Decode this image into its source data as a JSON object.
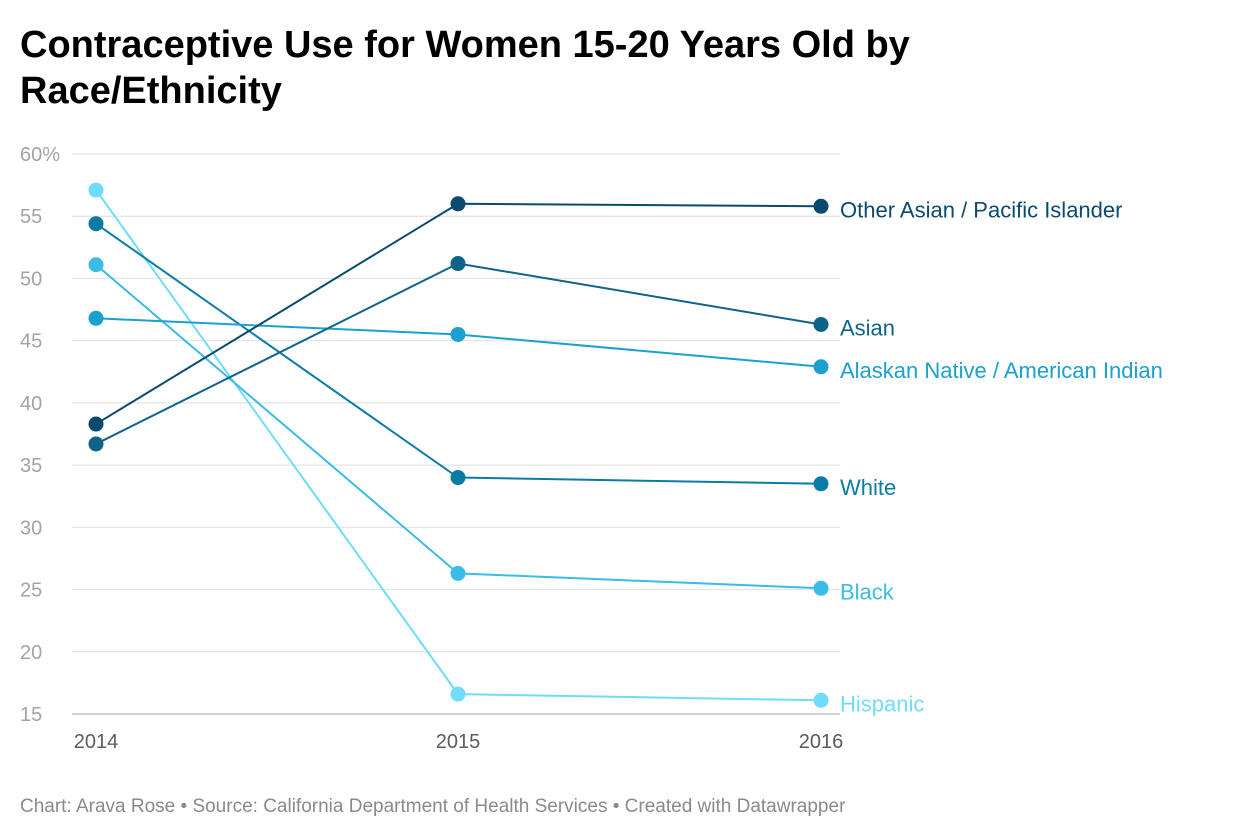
{
  "chart_data": {
    "type": "line",
    "title": "Contraceptive Use for Women 15-20 Years Old by Race/Ethnicity",
    "x": [
      "2014",
      "2015",
      "2016"
    ],
    "ylim": [
      15,
      60
    ],
    "yticks": [
      "60%",
      "55",
      "50",
      "45",
      "40",
      "35",
      "30",
      "25",
      "20",
      "15"
    ],
    "ytick_values": [
      60,
      55,
      50,
      45,
      40,
      35,
      30,
      25,
      20,
      15
    ],
    "grid": true,
    "legend": "direct labels at right",
    "series": [
      {
        "name": "Other Asian / Pacific Islander",
        "values": [
          38.3,
          56.0,
          55.8
        ],
        "color": "#0a4a6e"
      },
      {
        "name": "Asian",
        "values": [
          36.7,
          51.2,
          46.3
        ],
        "color": "#0d6389"
      },
      {
        "name": "Alaskan Native / American Indian",
        "values": [
          46.8,
          45.5,
          42.9
        ],
        "color": "#1ba0d0"
      },
      {
        "name": "White",
        "values": [
          54.4,
          34.0,
          33.5
        ],
        "color": "#0a7ba4"
      },
      {
        "name": "Black",
        "values": [
          51.1,
          26.3,
          25.1
        ],
        "color": "#3bbbe8"
      },
      {
        "name": "Hispanic",
        "values": [
          57.1,
          16.6,
          16.1
        ],
        "color": "#6fdcfb"
      }
    ]
  },
  "footer": {
    "text": "Chart: Arava Rose • Source: California Department of Health Services • Created with Datawrapper"
  }
}
